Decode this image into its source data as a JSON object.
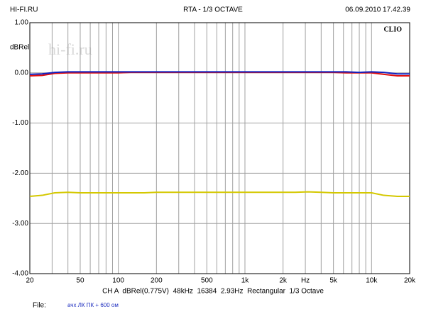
{
  "chart_data": {
    "type": "line",
    "title": "RTA - 1/3 OCTAVE",
    "source": "HI-FI.RU",
    "timestamp": "06.09.2010 17.42.39",
    "brand": "CLIO",
    "watermark": "hi-fi.ru",
    "ylabel": "dBRel",
    "footer": "CH A  dBRel(0.775V)  48kHz  16384  2.93Hz  Rectangular  1/3 Octave",
    "file_label": "File:",
    "file_name": "ачх ЛК ПК + 600 ом",
    "xscale": "log",
    "grid": true,
    "x": [
      20,
      25,
      31.5,
      40,
      50,
      63,
      80,
      100,
      125,
      160,
      200,
      250,
      315,
      400,
      500,
      630,
      800,
      1000,
      1250,
      1600,
      2000,
      2500,
      3150,
      4000,
      5000,
      6300,
      8000,
      10000,
      12500,
      16000,
      20000
    ],
    "series": [
      {
        "color": "#d4c800",
        "values": [
          -2.46,
          -2.44,
          -2.39,
          -2.38,
          -2.39,
          -2.39,
          -2.39,
          -2.39,
          -2.39,
          -2.39,
          -2.38,
          -2.38,
          -2.38,
          -2.38,
          -2.38,
          -2.38,
          -2.38,
          -2.38,
          -2.38,
          -2.38,
          -2.38,
          -2.38,
          -2.37,
          -2.38,
          -2.39,
          -2.39,
          -2.39,
          -2.39,
          -2.44,
          -2.46,
          -2.46
        ]
      },
      {
        "color": "#e01010",
        "values": [
          -0.06,
          -0.05,
          -0.01,
          0.0,
          0.0,
          0.0,
          0.0,
          0.0,
          0.01,
          0.01,
          0.01,
          0.01,
          0.01,
          0.01,
          0.01,
          0.01,
          0.01,
          0.01,
          0.01,
          0.01,
          0.01,
          0.01,
          0.01,
          0.01,
          0.01,
          0.0,
          0.0,
          0.0,
          -0.03,
          -0.06,
          -0.06
        ]
      },
      {
        "color": "#1020c0",
        "values": [
          -0.03,
          -0.02,
          0.01,
          0.02,
          0.02,
          0.02,
          0.02,
          0.02,
          0.02,
          0.02,
          0.02,
          0.02,
          0.02,
          0.02,
          0.02,
          0.02,
          0.02,
          0.02,
          0.02,
          0.02,
          0.02,
          0.02,
          0.02,
          0.02,
          0.02,
          0.02,
          0.01,
          0.02,
          0.01,
          -0.02,
          -0.02
        ]
      }
    ],
    "xlim": [
      20,
      20000
    ],
    "ylim": [
      -4,
      1
    ],
    "xticks": [
      20,
      50,
      100,
      200,
      500,
      {
        "value": 1000,
        "label": "1k"
      },
      {
        "value": 2000,
        "label": "2k"
      },
      {
        "value": 3000,
        "label": "Hz"
      },
      {
        "value": 5000,
        "label": "5k"
      },
      {
        "value": 10000,
        "label": "10k"
      },
      {
        "value": 20000,
        "label": "20k"
      }
    ],
    "x_minor": [
      30,
      40,
      60,
      70,
      80,
      90,
      300,
      400,
      600,
      700,
      800,
      900,
      4000,
      6000,
      7000,
      8000,
      9000
    ],
    "yticks": [
      {
        "value": 1,
        "label": "1.00"
      },
      {
        "value": 0,
        "label": "0.00"
      },
      {
        "value": -1,
        "label": "-1.00"
      },
      {
        "value": -2,
        "label": "-2.00"
      },
      {
        "value": -3,
        "label": "-3.00"
      },
      {
        "value": -4,
        "label": "-4.00"
      }
    ]
  }
}
